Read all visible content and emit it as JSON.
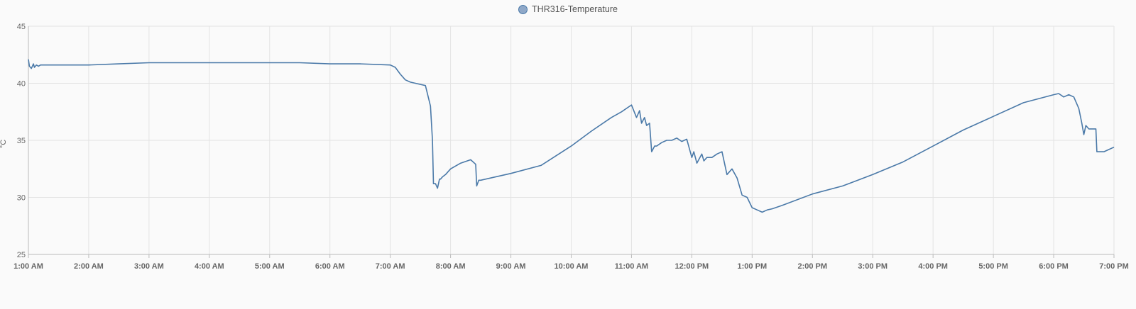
{
  "chart_data": {
    "type": "line",
    "title": "",
    "xlabel": "",
    "ylabel": "°C",
    "legend_position": "top-center",
    "grid": true,
    "x_ticks": [
      "1:00 AM",
      "2:00 AM",
      "3:00 AM",
      "4:00 AM",
      "5:00 AM",
      "6:00 AM",
      "7:00 AM",
      "8:00 AM",
      "9:00 AM",
      "10:00 AM",
      "11:00 AM",
      "12:00 PM",
      "1:00 PM",
      "2:00 PM",
      "3:00 PM",
      "4:00 PM",
      "5:00 PM",
      "6:00 PM",
      "7:00 PM"
    ],
    "y_ticks": [
      25,
      30,
      35,
      40,
      45
    ],
    "xlim": [
      "01:00",
      "19:00"
    ],
    "ylim": [
      25,
      45
    ],
    "series": [
      {
        "name": "THR316-Temperature",
        "color": "#4a79a8",
        "x": [
          "01:00",
          "01:01",
          "01:03",
          "01:05",
          "01:06",
          "01:08",
          "01:10",
          "01:12",
          "01:15",
          "01:20",
          "01:30",
          "02:00",
          "02:30",
          "03:00",
          "03:30",
          "04:00",
          "04:30",
          "05:00",
          "05:30",
          "06:00",
          "06:30",
          "07:00",
          "07:05",
          "07:10",
          "07:15",
          "07:20",
          "07:25",
          "07:30",
          "07:35",
          "07:40",
          "07:42",
          "07:43",
          "07:45",
          "07:47",
          "07:49",
          "07:50",
          "07:52",
          "07:55",
          "08:00",
          "08:10",
          "08:20",
          "08:25",
          "08:26",
          "08:28",
          "08:30",
          "09:00",
          "09:30",
          "10:00",
          "10:20",
          "10:40",
          "10:50",
          "11:00",
          "11:05",
          "11:08",
          "11:10",
          "11:13",
          "11:15",
          "11:18",
          "11:20",
          "11:23",
          "11:25",
          "11:30",
          "11:35",
          "11:40",
          "11:45",
          "11:50",
          "11:55",
          "12:00",
          "12:02",
          "12:05",
          "12:10",
          "12:12",
          "12:15",
          "12:20",
          "12:25",
          "12:30",
          "12:35",
          "12:40",
          "12:45",
          "12:50",
          "12:55",
          "13:00",
          "13:05",
          "13:10",
          "13:15",
          "13:20",
          "13:30",
          "14:00",
          "14:30",
          "15:00",
          "15:30",
          "16:00",
          "16:30",
          "17:00",
          "17:30",
          "18:00",
          "18:05",
          "18:10",
          "18:15",
          "18:20",
          "18:25",
          "18:28",
          "18:30",
          "18:32",
          "18:35",
          "18:40",
          "18:42",
          "18:43",
          "18:45",
          "18:48",
          "18:50",
          "18:55",
          "19:00"
        ],
        "values": [
          42.1,
          41.5,
          41.3,
          41.7,
          41.4,
          41.6,
          41.5,
          41.6,
          41.6,
          41.6,
          41.6,
          41.6,
          41.7,
          41.8,
          41.8,
          41.8,
          41.8,
          41.8,
          41.8,
          41.7,
          41.7,
          41.6,
          41.4,
          40.8,
          40.3,
          40.1,
          40.0,
          39.9,
          39.8,
          38.0,
          35.0,
          31.2,
          31.2,
          30.8,
          31.6,
          31.6,
          31.8,
          32.0,
          32.5,
          33.0,
          33.3,
          32.9,
          31.0,
          31.5,
          31.5,
          32.1,
          32.8,
          34.5,
          35.8,
          37.0,
          37.5,
          38.1,
          37.0,
          37.6,
          36.5,
          37.0,
          36.3,
          36.5,
          34.0,
          34.5,
          34.5,
          34.8,
          35.0,
          35.0,
          35.2,
          34.9,
          35.1,
          33.5,
          34.0,
          33.0,
          33.8,
          33.2,
          33.5,
          33.5,
          33.8,
          34.0,
          32.0,
          32.5,
          31.7,
          30.2,
          30.0,
          29.1,
          28.9,
          28.7,
          28.9,
          29.0,
          29.3,
          30.3,
          31.0,
          32.0,
          33.1,
          34.5,
          35.9,
          37.1,
          38.3,
          39.0,
          39.1,
          38.8,
          39.0,
          38.8,
          37.8,
          36.5,
          35.5,
          36.3,
          36.0,
          36.0,
          36.0,
          34.0,
          34.0,
          34.0,
          34.0,
          34.2,
          34.4
        ]
      }
    ]
  }
}
